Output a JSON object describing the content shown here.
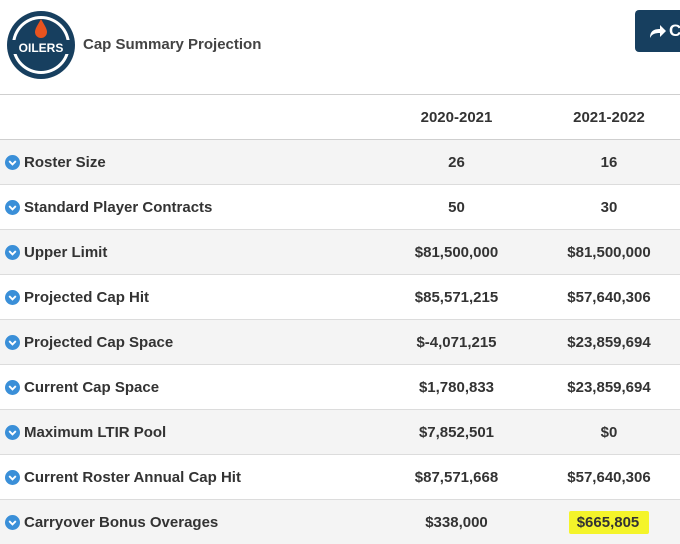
{
  "header": {
    "team_logo_text": "OILERS",
    "title": "Cap Summary Projection",
    "share_button_label": "C"
  },
  "colors": {
    "primary_navy": "#173f5f",
    "oilers_orange": "#e8531f",
    "info_icon_blue": "#3a8fd8",
    "highlight_yellow": "#f4f42a"
  },
  "table": {
    "columns": [
      "",
      "2020-2021",
      "2021-2022"
    ],
    "rows": [
      {
        "label": "Roster Size",
        "v1": "26",
        "v2": "16"
      },
      {
        "label": "Standard Player Contracts",
        "v1": "50",
        "v2": "30"
      },
      {
        "label": "Upper Limit",
        "v1": "$81,500,000",
        "v2": "$81,500,000"
      },
      {
        "label": "Projected Cap Hit",
        "v1": "$85,571,215",
        "v2": "$57,640,306"
      },
      {
        "label": "Projected Cap Space",
        "v1": "$-4,071,215",
        "v2": "$23,859,694"
      },
      {
        "label": "Current Cap Space",
        "v1": "$1,780,833",
        "v2": "$23,859,694"
      },
      {
        "label": "Maximum LTIR Pool",
        "v1": "$7,852,501",
        "v2": "$0"
      },
      {
        "label": "Current Roster Annual Cap Hit",
        "v1": "$87,571,668",
        "v2": "$57,640,306"
      },
      {
        "label": "Carryover Bonus Overages",
        "v1": "$338,000",
        "v2": "$665,805"
      }
    ]
  }
}
